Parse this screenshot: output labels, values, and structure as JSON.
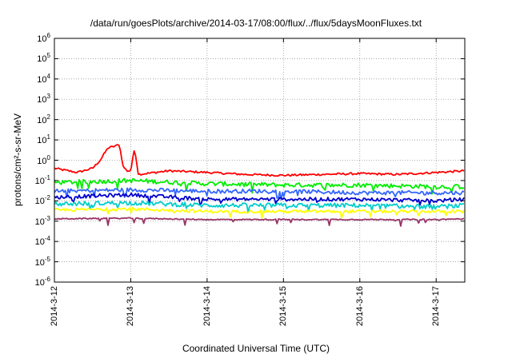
{
  "chart_data": {
    "type": "line",
    "title": "/data/run/goesPlots/archive/2014-03-17/08:00/flux/../flux/5daysMoonFluxes.txt",
    "xlabel": "Coordinated Universal Time (UTC)",
    "ylabel": "protons/cm²-s-sr-MeV",
    "y_scale": "log",
    "ylim": [
      1e-06,
      1000000.0
    ],
    "y_ticks": [
      {
        "base": "10",
        "exp": "-6"
      },
      {
        "base": "10",
        "exp": "-5"
      },
      {
        "base": "10",
        "exp": "-4"
      },
      {
        "base": "10",
        "exp": "-3"
      },
      {
        "base": "10",
        "exp": "-2"
      },
      {
        "base": "10",
        "exp": "-1"
      },
      {
        "base": "10",
        "exp": "0"
      },
      {
        "base": "10",
        "exp": "1"
      },
      {
        "base": "10",
        "exp": "2"
      },
      {
        "base": "10",
        "exp": "3"
      },
      {
        "base": "10",
        "exp": "4"
      },
      {
        "base": "10",
        "exp": "5"
      },
      {
        "base": "10",
        "exp": "6"
      }
    ],
    "x_range": [
      "2014-03-12 00:00",
      "2014-03-17 09:00"
    ],
    "x_ticks": [
      "2014-3-12",
      "2014-3-13",
      "2014-3-14",
      "2014-3-15",
      "2014-3-16",
      "2014-3-17"
    ],
    "grid": true,
    "series": [
      {
        "color": "#ff0000",
        "x": [
          0.0,
          0.3,
          0.5,
          0.6,
          0.7,
          0.8,
          0.85,
          0.9,
          0.95,
          1.0,
          1.05,
          1.1,
          1.5,
          2.0,
          2.5,
          3.0,
          3.5,
          4.0,
          4.5,
          5.0,
          5.37
        ],
        "values": [
          0.4,
          0.25,
          0.4,
          1.0,
          4.0,
          5.0,
          6.0,
          0.5,
          0.3,
          0.3,
          4.0,
          0.2,
          0.3,
          0.25,
          0.2,
          0.18,
          0.2,
          0.22,
          0.2,
          0.25,
          0.3
        ]
      },
      {
        "color": "#00ee00",
        "x": [
          0.0,
          1.0,
          2.0,
          3.0,
          4.0,
          5.0,
          5.37
        ],
        "values": [
          0.08,
          0.1,
          0.07,
          0.06,
          0.06,
          0.05,
          0.05
        ]
      },
      {
        "color": "#3366ff",
        "x": [
          0.0,
          1.0,
          2.0,
          3.0,
          4.0,
          5.0,
          5.37
        ],
        "values": [
          0.03,
          0.035,
          0.03,
          0.03,
          0.025,
          0.025,
          0.025
        ]
      },
      {
        "color": "#0000cc",
        "x": [
          0.0,
          1.0,
          2.0,
          3.0,
          4.0,
          5.0,
          5.37
        ],
        "values": [
          0.015,
          0.02,
          0.012,
          0.012,
          0.012,
          0.01,
          0.012
        ]
      },
      {
        "color": "#00cccc",
        "x": [
          0.0,
          1.0,
          2.0,
          3.0,
          4.0,
          5.0,
          5.37
        ],
        "values": [
          0.007,
          0.008,
          0.006,
          0.006,
          0.006,
          0.005,
          0.006
        ]
      },
      {
        "color": "#ffff00",
        "x": [
          0.0,
          1.0,
          2.0,
          3.0,
          4.0,
          5.0,
          5.37
        ],
        "values": [
          0.0035,
          0.004,
          0.003,
          0.003,
          0.003,
          0.003,
          0.003
        ]
      },
      {
        "color": "#993366",
        "x": [
          0.0,
          1.0,
          2.0,
          3.0,
          4.0,
          5.0,
          5.37
        ],
        "values": [
          0.0013,
          0.0014,
          0.0012,
          0.0012,
          0.0012,
          0.0012,
          0.0013
        ]
      }
    ]
  }
}
